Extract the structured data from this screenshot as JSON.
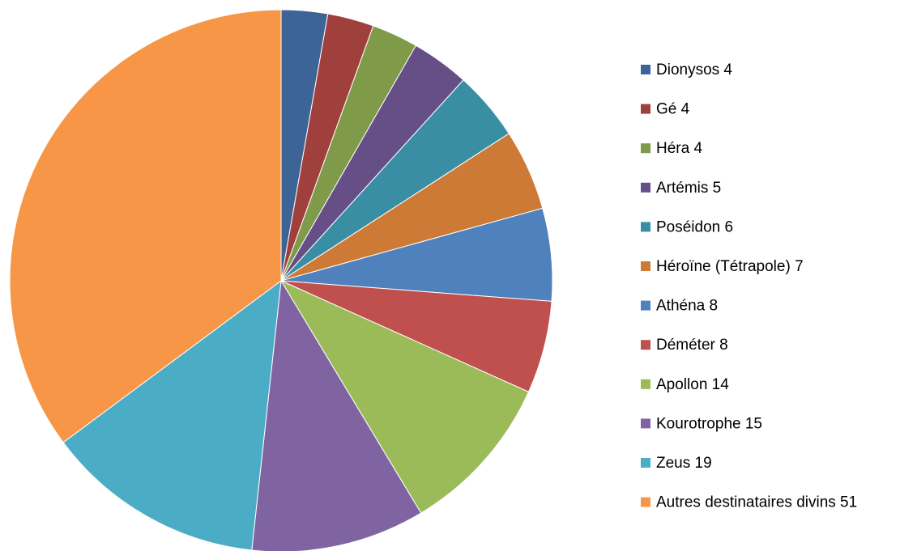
{
  "chart_data": {
    "type": "pie",
    "categories": [
      "Dionysos 4",
      "Gé 4",
      "Héra 4",
      "Artémis 5",
      "Poséidon 6",
      "Héroïne (Tétrapole) 7",
      "Athéna 8",
      "Déméter 8",
      "Apollon 14",
      "Kourotrophe 15",
      "Zeus 19",
      "Autres destinataires divins 51"
    ],
    "values": [
      4,
      4,
      4,
      5,
      6,
      7,
      8,
      8,
      14,
      15,
      19,
      51
    ],
    "colors": [
      "#3c6496",
      "#a0403d",
      "#7f9a48",
      "#664f87",
      "#3a8ea4",
      "#cc7a35",
      "#4f81bd",
      "#c0504d",
      "#9bbb59",
      "#8064a2",
      "#4bacc6",
      "#f79646"
    ],
    "legend": "right"
  }
}
